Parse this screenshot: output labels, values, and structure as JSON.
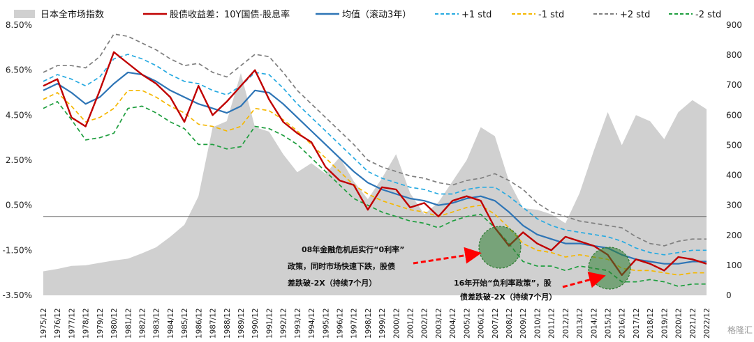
{
  "chart_data": {
    "type": "line",
    "title": "",
    "x_categories": [
      "1975/12",
      "1976/12",
      "1977/12",
      "1978/12",
      "1979/12",
      "1980/12",
      "1981/12",
      "1982/12",
      "1983/12",
      "1984/12",
      "1985/12",
      "1986/12",
      "1987/12",
      "1988/12",
      "1989/12",
      "1990/12",
      "1991/12",
      "1992/12",
      "1993/12",
      "1994/12",
      "1995/12",
      "1996/12",
      "1997/12",
      "1998/12",
      "1999/12",
      "2000/12",
      "2001/12",
      "2002/12",
      "2003/12",
      "2004/12",
      "2005/12",
      "2006/12",
      "2007/12",
      "2008/12",
      "2009/12",
      "2010/12",
      "2011/12",
      "2012/12",
      "2013/12",
      "2014/12",
      "2015/12",
      "2016/12",
      "2017/12",
      "2018/12",
      "2019/12",
      "2020/12",
      "2021/12",
      "2022/12"
    ],
    "y_left": {
      "ticks": [
        "8.50%",
        "6.50%",
        "4.50%",
        "2.50%",
        "0.50%",
        "-1.50%",
        "-3.50%"
      ],
      "min": -3.5,
      "max": 8.5
    },
    "y_right": {
      "ticks": [
        "900",
        "800",
        "700",
        "600",
        "500",
        "400",
        "300",
        "200",
        "100",
        "0"
      ],
      "min": 0,
      "max": 900
    },
    "legend": [
      {
        "label": "日本全市场指数",
        "color": "#d0d0d0",
        "style": "area"
      },
      {
        "label": "股债收益差：10Y国债-股息率",
        "color": "#c00000",
        "style": "solid"
      },
      {
        "label": "均值（滚动3年）",
        "color": "#2e75b6",
        "style": "solid"
      },
      {
        "label": "+1 std",
        "color": "#27aae1",
        "style": "dashed"
      },
      {
        "label": "-1 std",
        "color": "#f5b700",
        "style": "dashed"
      },
      {
        "label": "+2 std",
        "color": "#7f7f7f",
        "style": "dashed"
      },
      {
        "label": "-2 std",
        "color": "#1e9e3e",
        "style": "dashed"
      }
    ],
    "series": [
      {
        "name": "日本全市场指数",
        "axis": "right",
        "values": [
          80,
          88,
          98,
          100,
          108,
          116,
          122,
          140,
          160,
          195,
          235,
          330,
          560,
          580,
          740,
          560,
          545,
          470,
          410,
          440,
          405,
          460,
          380,
          320,
          390,
          470,
          340,
          270,
          310,
          380,
          450,
          560,
          530,
          380,
          290,
          285,
          270,
          240,
          340,
          480,
          610,
          500,
          600,
          580,
          520,
          610,
          650,
          620
        ]
      },
      {
        "name": "股债收益差：10Y国债-股息率",
        "axis": "left",
        "values": [
          5.8,
          6.1,
          4.4,
          4.0,
          5.6,
          7.3,
          6.8,
          6.3,
          5.9,
          5.3,
          4.2,
          5.8,
          4.5,
          5.1,
          5.8,
          6.5,
          5.2,
          4.2,
          3.7,
          3.3,
          2.2,
          1.6,
          1.4,
          0.3,
          1.3,
          1.2,
          0.4,
          0.6,
          0.0,
          0.7,
          0.9,
          0.7,
          -0.5,
          -1.3,
          -0.7,
          -1.2,
          -1.5,
          -0.9,
          -1.1,
          -1.3,
          -1.7,
          -2.6,
          -1.9,
          -2.1,
          -2.4,
          -1.8,
          -1.9,
          -2.1
        ]
      },
      {
        "name": "均值（滚动3年）",
        "axis": "left",
        "values": [
          5.6,
          5.9,
          5.5,
          5.0,
          5.3,
          5.9,
          6.4,
          6.3,
          6.0,
          5.6,
          5.3,
          5.0,
          4.8,
          4.6,
          4.9,
          5.6,
          5.5,
          5.0,
          4.4,
          3.8,
          3.2,
          2.6,
          2.0,
          1.5,
          1.2,
          1.0,
          0.8,
          0.7,
          0.5,
          0.6,
          0.8,
          0.9,
          0.7,
          0.2,
          -0.4,
          -0.8,
          -1.0,
          -1.2,
          -1.2,
          -1.3,
          -1.4,
          -1.7,
          -1.9,
          -2.0,
          -2.1,
          -2.1,
          -2.0,
          -2.0
        ]
      },
      {
        "name": "+1 std",
        "axis": "left",
        "values": [
          6.0,
          6.3,
          6.1,
          5.8,
          6.2,
          7.0,
          7.2,
          7.0,
          6.7,
          6.3,
          6.0,
          5.9,
          5.6,
          5.4,
          5.8,
          6.4,
          6.3,
          5.7,
          5.0,
          4.4,
          3.8,
          3.2,
          2.6,
          2.0,
          1.7,
          1.5,
          1.3,
          1.2,
          1.0,
          1.0,
          1.2,
          1.3,
          1.3,
          0.9,
          0.4,
          -0.1,
          -0.4,
          -0.6,
          -0.7,
          -0.8,
          -0.9,
          -1.1,
          -1.4,
          -1.6,
          -1.7,
          -1.6,
          -1.5,
          -1.5
        ]
      },
      {
        "name": "-1 std",
        "axis": "left",
        "values": [
          5.2,
          5.5,
          4.9,
          4.2,
          4.4,
          4.8,
          5.6,
          5.6,
          5.3,
          4.9,
          4.6,
          4.1,
          4.0,
          3.8,
          4.0,
          4.8,
          4.7,
          4.3,
          3.8,
          3.2,
          2.6,
          2.0,
          1.4,
          1.0,
          0.7,
          0.5,
          0.3,
          0.2,
          0.0,
          0.2,
          0.4,
          0.5,
          0.1,
          -0.5,
          -1.2,
          -1.5,
          -1.6,
          -1.8,
          -1.7,
          -1.8,
          -1.9,
          -2.3,
          -2.4,
          -2.4,
          -2.5,
          -2.6,
          -2.5,
          -2.5
        ]
      },
      {
        "name": "+2 std",
        "axis": "left",
        "values": [
          6.4,
          6.7,
          6.7,
          6.6,
          7.1,
          8.1,
          8.0,
          7.7,
          7.4,
          7.0,
          6.7,
          6.8,
          6.4,
          6.2,
          6.7,
          7.2,
          7.1,
          6.4,
          5.6,
          5.0,
          4.4,
          3.8,
          3.2,
          2.5,
          2.2,
          2.0,
          1.8,
          1.7,
          1.5,
          1.4,
          1.6,
          1.7,
          1.9,
          1.6,
          1.2,
          0.6,
          0.2,
          0.0,
          -0.2,
          -0.3,
          -0.4,
          -0.5,
          -0.9,
          -1.2,
          -1.3,
          -1.1,
          -1.0,
          -1.0
        ]
      },
      {
        "name": "-2 std",
        "axis": "left",
        "values": [
          4.8,
          5.1,
          4.3,
          3.4,
          3.5,
          3.7,
          4.8,
          4.9,
          4.6,
          4.2,
          3.9,
          3.2,
          3.2,
          3.0,
          3.1,
          4.0,
          3.9,
          3.6,
          3.2,
          2.6,
          2.0,
          1.4,
          0.8,
          0.5,
          0.2,
          0.0,
          -0.2,
          -0.3,
          -0.5,
          -0.2,
          0.0,
          0.1,
          -0.5,
          -1.2,
          -2.0,
          -2.2,
          -2.2,
          -2.4,
          -2.2,
          -2.3,
          -2.4,
          -2.9,
          -2.9,
          -2.8,
          -2.9,
          -3.1,
          -3.0,
          -3.0
        ]
      }
    ],
    "annotations": [
      {
        "lines": [
          "08年金融危机后实行“0利率”",
          "政策，同时市场快速下跌，股债",
          "差跌破-2X（持续7个月）"
        ],
        "target_x": "2008/12"
      },
      {
        "lines": [
          "16年开始“负利率政策”，股",
          "债差跌破-2X（持续7个月）"
        ],
        "target_x": "2016/12"
      }
    ],
    "grid": false,
    "legend_placement": "top"
  },
  "watermark": "格隆汇",
  "colors": {
    "area": "#d0d0d0",
    "spread": "#c00000",
    "mean": "#2e75b6",
    "plus1": "#27aae1",
    "minus1": "#f5b700",
    "plus2": "#7f7f7f",
    "minus2": "#1e9e3e",
    "arrow": "#ff0000",
    "highlight": "#2e7d32"
  }
}
